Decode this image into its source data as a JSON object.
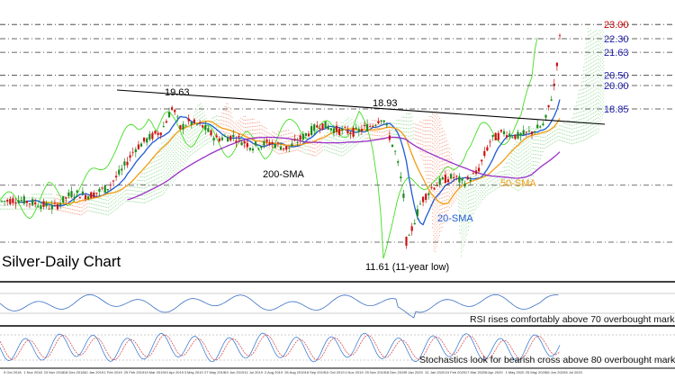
{
  "chart_data": {
    "type": "candlestick",
    "title": "Silver-Daily Chart",
    "price_levels": [
      {
        "value": "23.00",
        "color": "#cc0000"
      },
      {
        "value": "22.30",
        "color": "#1a1aaa"
      },
      {
        "value": "21.63",
        "color": "#1a1aaa"
      },
      {
        "value": "20.50",
        "color": "#1a1aaa"
      },
      {
        "value": "20.00",
        "color": "#1a1aaa"
      },
      {
        "value": "18.85",
        "color": "#1a1aaa"
      }
    ],
    "annotations": {
      "high_1": "19.63",
      "high_2": "18.93",
      "low": "11.61 (11-year low)",
      "sma_200": "200-SMA",
      "sma_50": "50-SMA",
      "sma_20": "20-SMA"
    },
    "series_colors": {
      "sma_20": "#1f5bd6",
      "sma_50": "#f39c12",
      "sma_200": "#9b30c8",
      "lagging_span": "#44dd22",
      "cloud_bull": "#7fd07f",
      "cloud_bear": "#f08060",
      "candle_up": "#1a8a1a",
      "candle_down": "#cc1111",
      "trendline": "#000000"
    },
    "indicators": {
      "rsi_note": "RSI rises comfortably above 70 overbought mark",
      "stoch_note": "Stochastics look for bearish cross above 80 overbought mark",
      "rsi_color": "#3a6fc4",
      "stoch_k_color": "#2a6fd0",
      "stoch_d_color": "#d04040"
    },
    "x_tick_labels": [
      "9 Oct 2018",
      "1 Nov 2018",
      "23 Nov 2018",
      "18 Dec 2018",
      "10 Jan 2019",
      "1 Feb 2019",
      "25 Feb 2019",
      "19 Mar 2019",
      "10 Apr 2019",
      "3 May 2019",
      "27 May 2019",
      "19 Jun 2019",
      "11 Jul 2019",
      "2 Aug 2019",
      "26 Aug 2019",
      "18 Sep 2019",
      "10 Oct 2019",
      "1 Nov 2019",
      "25 Nov 2019",
      "18 Dec 2019",
      "9 Jan 2020",
      "31 Jan 2020",
      "24 Feb 2020",
      "17 Mar 2020",
      "8 Apr 2020",
      "1 May 2020",
      "25 May 2020",
      "16 Jun 2020",
      "8 Jul 2020"
    ]
  }
}
